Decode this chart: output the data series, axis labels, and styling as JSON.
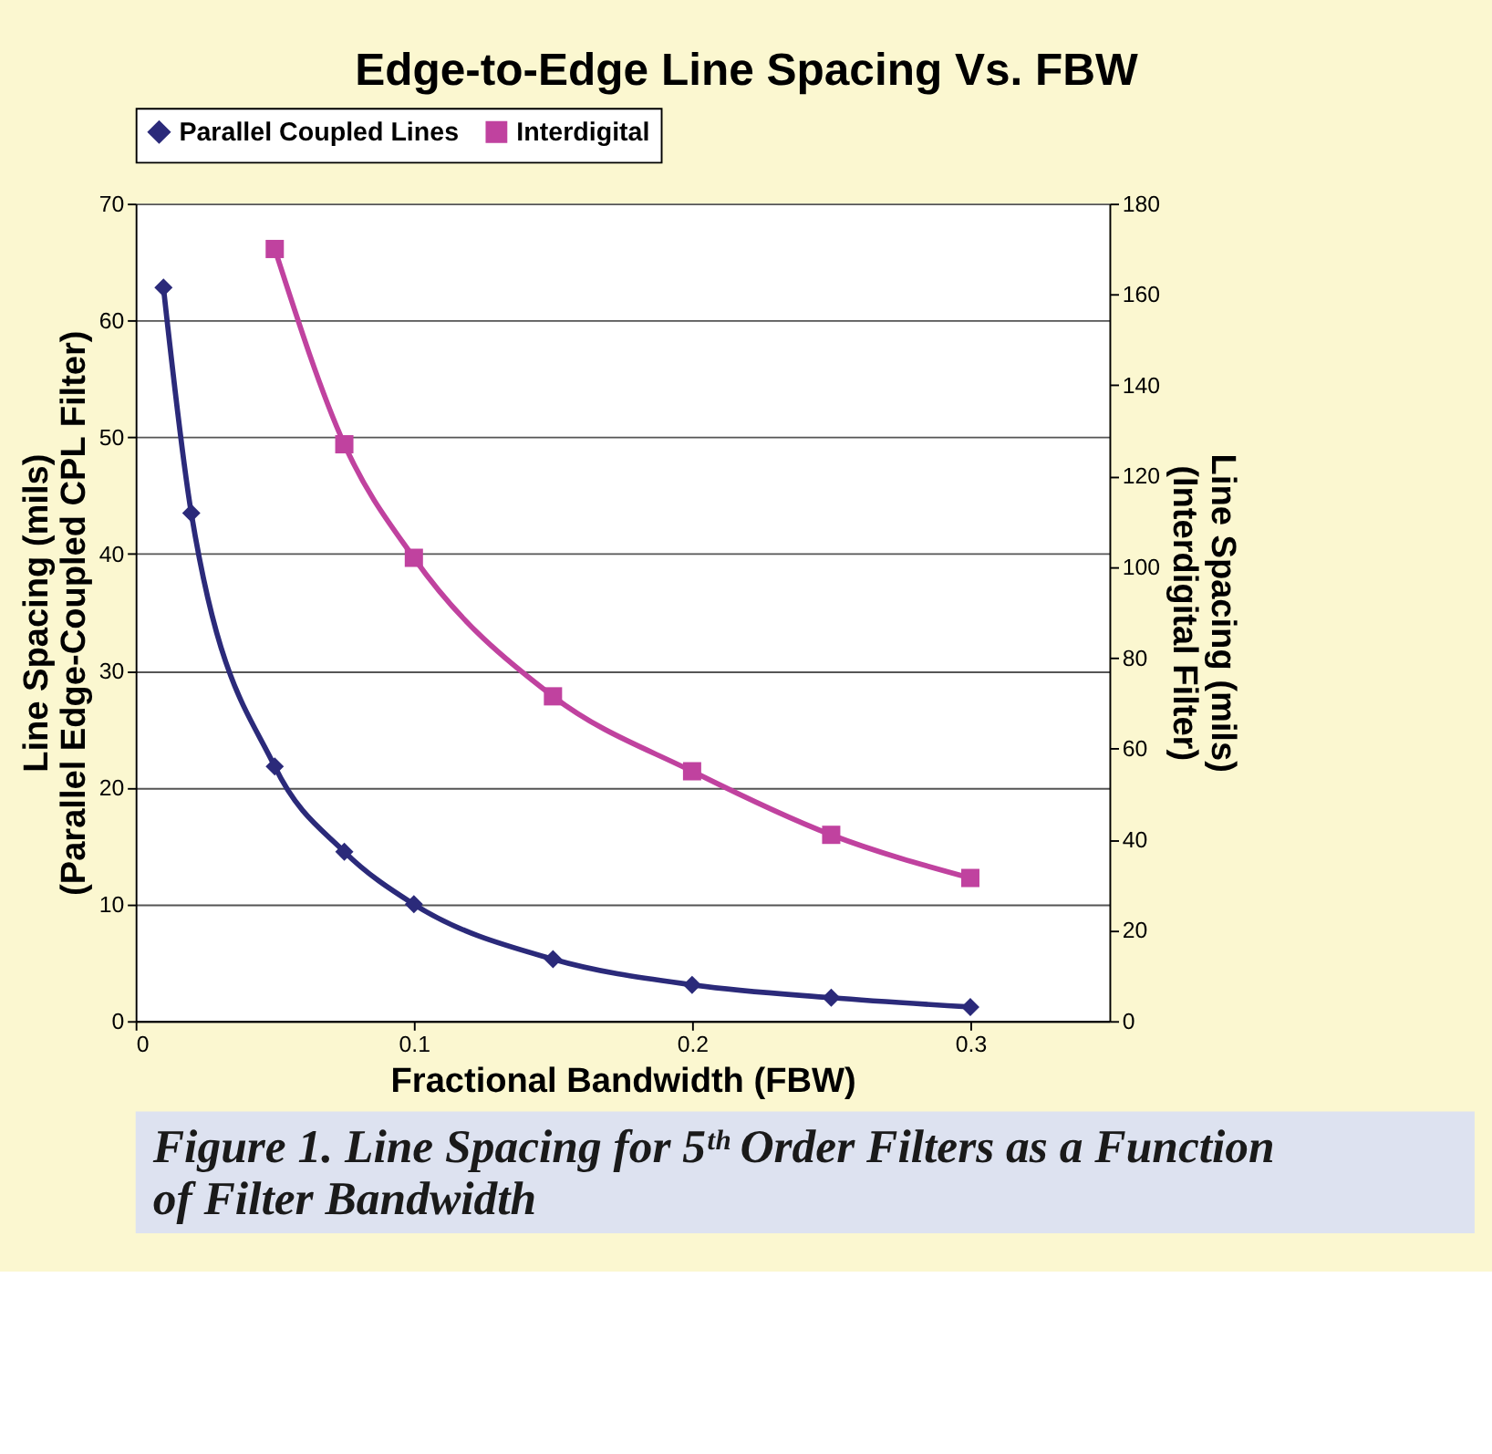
{
  "chart_data": {
    "type": "line",
    "title": "Edge-to-Edge Line Spacing Vs. FBW",
    "xlabel": "Fractional Bandwidth (FBW)",
    "ylabel": "Line Spacing (mils)\n(Parallel Edge-Coupled CPL Filter)",
    "y2label": "Line Spacing (mils)\n(Interdigital Filter)",
    "series": [
      {
        "name": "Parallel Coupled Lines",
        "color": "#2b2a7a",
        "marker": "diamond",
        "x": [
          0.01,
          0.02,
          0.05,
          0.075,
          0.1,
          0.15,
          0.2,
          0.25,
          0.3
        ],
        "values": [
          62.8,
          43.5,
          21.8,
          14.5,
          10,
          5.3,
          3.1,
          2,
          1.2
        ]
      },
      {
        "name": "Interdigital",
        "color": "#c0429f",
        "marker": "square",
        "axis": "y2",
        "x": [
          0.05,
          0.075,
          0.1,
          0.15,
          0.2,
          0.25,
          0.3
        ],
        "values": [
          170,
          127,
          102,
          71.5,
          55,
          41,
          31.5
        ]
      }
    ],
    "xlim": [
      0,
      0.35
    ],
    "xticks": [
      0,
      0.1,
      0.2,
      0.3
    ],
    "ylim": [
      0,
      70
    ],
    "yticks": [
      0,
      10,
      20,
      30,
      40,
      50,
      60,
      70
    ],
    "y2lim": [
      0,
      180
    ],
    "y2ticks": [
      0,
      20,
      40,
      60,
      80,
      100,
      120,
      140,
      160,
      180
    ],
    "grid": "y",
    "legend": "top",
    "annotations": [
      "Figure 1. Line Spacing for 5ᵗʰ Order Filters as a Function of Filter Bandwidth"
    ]
  }
}
